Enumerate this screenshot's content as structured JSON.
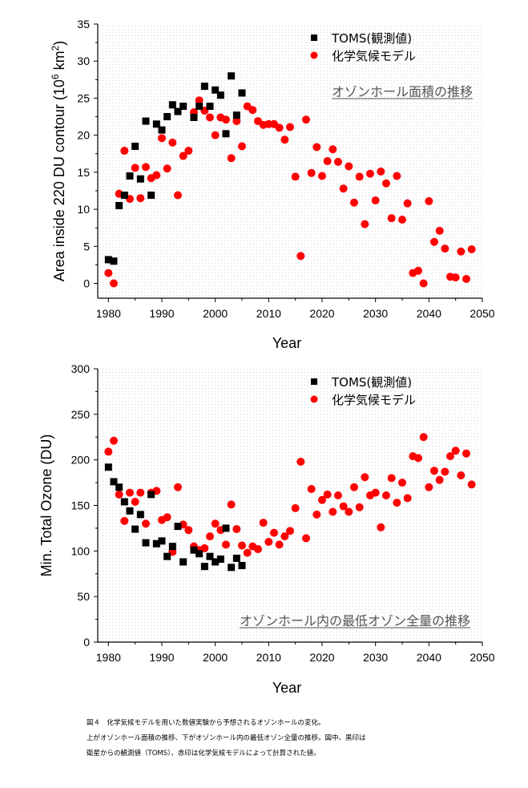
{
  "chart_data": [
    {
      "type": "scatter",
      "title": "オゾンホール面積の推移",
      "xlabel": "Year",
      "ylabel": "Area inside 220 DU contour (10^6 km^2)",
      "xlim": [
        1978,
        2050
      ],
      "ylim": [
        -2,
        35
      ],
      "xticks": [
        1980,
        1990,
        2000,
        2010,
        2020,
        2030,
        2040,
        2050
      ],
      "yticks": [
        0,
        5,
        10,
        15,
        20,
        25,
        30,
        35
      ],
      "legend_position": "top-right",
      "series": [
        {
          "name": "TOMS(観測値)",
          "marker": "square",
          "color": "#000000",
          "points": [
            [
              1980,
              3.2
            ],
            [
              1981,
              3.0
            ],
            [
              1982,
              10.5
            ],
            [
              1983,
              11.9
            ],
            [
              1984,
              14.5
            ],
            [
              1985,
              18.5
            ],
            [
              1986,
              14.1
            ],
            [
              1987,
              21.9
            ],
            [
              1988,
              11.9
            ],
            [
              1989,
              21.5
            ],
            [
              1990,
              20.7
            ],
            [
              1991,
              22.5
            ],
            [
              1992,
              24.1
            ],
            [
              1993,
              23.2
            ],
            [
              1994,
              23.9
            ],
            [
              1996,
              22.4
            ],
            [
              1997,
              23.9
            ],
            [
              1998,
              26.6
            ],
            [
              1999,
              23.9
            ],
            [
              2000,
              26.1
            ],
            [
              2001,
              25.4
            ],
            [
              2002,
              20.2
            ],
            [
              2003,
              28.0
            ],
            [
              2004,
              22.7
            ],
            [
              2005,
              25.7
            ]
          ]
        },
        {
          "name": "化学気候モデル",
          "marker": "circle",
          "color": "#ff0000",
          "points": [
            [
              1980,
              1.4
            ],
            [
              1981,
              0.0
            ],
            [
              1982,
              12.1
            ],
            [
              1983,
              17.9
            ],
            [
              1984,
              11.4
            ],
            [
              1985,
              15.6
            ],
            [
              1986,
              11.5
            ],
            [
              1987,
              15.7
            ],
            [
              1988,
              14.2
            ],
            [
              1989,
              14.6
            ],
            [
              1990,
              19.6
            ],
            [
              1991,
              15.5
            ],
            [
              1992,
              19.0
            ],
            [
              1993,
              11.9
            ],
            [
              1994,
              17.2
            ],
            [
              1995,
              17.9
            ],
            [
              1996,
              23.1
            ],
            [
              1997,
              24.7
            ],
            [
              1998,
              23.3
            ],
            [
              1999,
              22.4
            ],
            [
              2000,
              20.0
            ],
            [
              2001,
              22.4
            ],
            [
              2002,
              22.1
            ],
            [
              2003,
              16.9
            ],
            [
              2004,
              21.9
            ],
            [
              2005,
              18.5
            ],
            [
              2006,
              23.9
            ],
            [
              2007,
              23.4
            ],
            [
              2008,
              21.9
            ],
            [
              2009,
              21.4
            ],
            [
              2010,
              21.5
            ],
            [
              2011,
              21.5
            ],
            [
              2012,
              21.0
            ],
            [
              2013,
              19.4
            ],
            [
              2014,
              21.1
            ],
            [
              2015,
              14.4
            ],
            [
              2016,
              3.7
            ],
            [
              2017,
              22.1
            ],
            [
              2018,
              14.9
            ],
            [
              2019,
              18.4
            ],
            [
              2020,
              14.5
            ],
            [
              2021,
              16.5
            ],
            [
              2022,
              18.1
            ],
            [
              2023,
              16.4
            ],
            [
              2024,
              12.8
            ],
            [
              2025,
              15.8
            ],
            [
              2026,
              10.9
            ],
            [
              2027,
              14.4
            ],
            [
              2028,
              8.0
            ],
            [
              2029,
              14.8
            ],
            [
              2030,
              11.2
            ],
            [
              2031,
              15.1
            ],
            [
              2032,
              13.5
            ],
            [
              2033,
              8.8
            ],
            [
              2034,
              14.5
            ],
            [
              2035,
              8.6
            ],
            [
              2036,
              10.8
            ],
            [
              2037,
              1.4
            ],
            [
              2038,
              1.7
            ],
            [
              2039,
              0.0
            ],
            [
              2040,
              11.1
            ],
            [
              2041,
              5.6
            ],
            [
              2042,
              7.1
            ],
            [
              2043,
              4.7
            ],
            [
              2044,
              0.9
            ],
            [
              2045,
              0.8
            ],
            [
              2046,
              4.3
            ],
            [
              2047,
              0.6
            ],
            [
              2048,
              4.6
            ]
          ]
        }
      ]
    },
    {
      "type": "scatter",
      "title": "オゾンホール内の最低オゾン全量の推移",
      "xlabel": "Year",
      "ylabel": "Min. Total Ozone (DU)",
      "xlim": [
        1978,
        2050
      ],
      "ylim": [
        0,
        300
      ],
      "xticks": [
        1980,
        1990,
        2000,
        2010,
        2020,
        2030,
        2040,
        2050
      ],
      "yticks": [
        0,
        50,
        100,
        150,
        200,
        250,
        300
      ],
      "legend_position": "top-right",
      "series": [
        {
          "name": "TOMS(観測値)",
          "marker": "square",
          "color": "#000000",
          "points": [
            [
              1980,
              192
            ],
            [
              1981,
              176
            ],
            [
              1982,
              170
            ],
            [
              1983,
              154
            ],
            [
              1984,
              144
            ],
            [
              1985,
              124
            ],
            [
              1986,
              140
            ],
            [
              1987,
              109
            ],
            [
              1988,
              162
            ],
            [
              1989,
              108
            ],
            [
              1990,
              111
            ],
            [
              1991,
              94
            ],
            [
              1992,
              105
            ],
            [
              1993,
              127
            ],
            [
              1994,
              88
            ],
            [
              1996,
              101
            ],
            [
              1997,
              97
            ],
            [
              1998,
              83
            ],
            [
              1999,
              94
            ],
            [
              2000,
              88
            ],
            [
              2001,
              91
            ],
            [
              2002,
              125
            ],
            [
              2003,
              82
            ],
            [
              2004,
              92
            ],
            [
              2005,
              84
            ]
          ]
        },
        {
          "name": "化学気候モデル",
          "marker": "circle",
          "color": "#ff0000",
          "points": [
            [
              1980,
              209
            ],
            [
              1981,
              221
            ],
            [
              1982,
              162
            ],
            [
              1983,
              133
            ],
            [
              1984,
              164
            ],
            [
              1985,
              154
            ],
            [
              1986,
              164
            ],
            [
              1987,
              130
            ],
            [
              1988,
              164
            ],
            [
              1989,
              166
            ],
            [
              1990,
              134
            ],
            [
              1991,
              137
            ],
            [
              1992,
              99
            ],
            [
              1993,
              170
            ],
            [
              1994,
              129
            ],
            [
              1995,
              123
            ],
            [
              1996,
              105
            ],
            [
              1997,
              101
            ],
            [
              1998,
              103
            ],
            [
              1999,
              116
            ],
            [
              2000,
              130
            ],
            [
              2001,
              123
            ],
            [
              2002,
              107
            ],
            [
              2003,
              151
            ],
            [
              2004,
              124
            ],
            [
              2005,
              106
            ],
            [
              2006,
              98
            ],
            [
              2007,
              105
            ],
            [
              2008,
              102
            ],
            [
              2009,
              131
            ],
            [
              2010,
              110
            ],
            [
              2011,
              120
            ],
            [
              2012,
              107
            ],
            [
              2013,
              116
            ],
            [
              2014,
              122
            ],
            [
              2015,
              147
            ],
            [
              2016,
              198
            ],
            [
              2017,
              114
            ],
            [
              2018,
              168
            ],
            [
              2019,
              140
            ],
            [
              2020,
              156
            ],
            [
              2021,
              162
            ],
            [
              2022,
              143
            ],
            [
              2023,
              161
            ],
            [
              2024,
              149
            ],
            [
              2025,
              143
            ],
            [
              2026,
              170
            ],
            [
              2027,
              148
            ],
            [
              2028,
              181
            ],
            [
              2029,
              161
            ],
            [
              2030,
              164
            ],
            [
              2031,
              126
            ],
            [
              2032,
              161
            ],
            [
              2033,
              180
            ],
            [
              2034,
              153
            ],
            [
              2035,
              175
            ],
            [
              2036,
              158
            ],
            [
              2037,
              204
            ],
            [
              2038,
              202
            ],
            [
              2039,
              225
            ],
            [
              2040,
              170
            ],
            [
              2041,
              188
            ],
            [
              2042,
              178
            ],
            [
              2043,
              187
            ],
            [
              2044,
              204
            ],
            [
              2045,
              210
            ],
            [
              2046,
              183
            ],
            [
              2047,
              207
            ],
            [
              2048,
              173
            ]
          ]
        }
      ]
    }
  ],
  "caption": [
    "図４　化学気候モデルを用いた数値実験から予想されるオゾンホールの変化。",
    "上がオゾンホール面積の推移、下がオゾンホール内の最低オゾン全量の推移。図中、黒印は",
    "衛星からの観測値（TOMS）、赤印は化学気候モデルによって計算された値。"
  ]
}
